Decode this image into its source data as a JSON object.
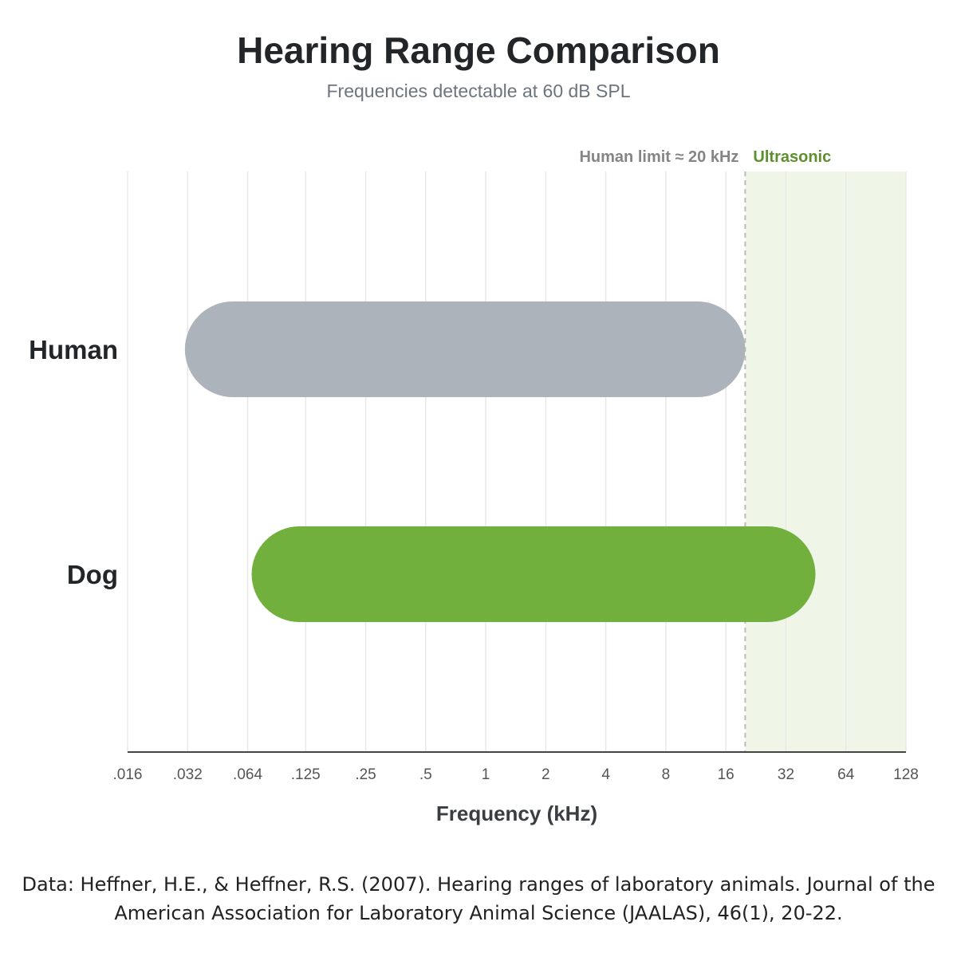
{
  "title": "Hearing Range Comparison",
  "subtitle": "Frequencies detectable at 60 dB SPL",
  "source": "Data: Heffner, H.E., & Heffner, R.S. (2007). Hearing ranges of laboratory animals. Journal of the American Association for Laboratory Animal Science (JAALAS), 46(1), 20-22.",
  "colors": {
    "human": "#adb3bb",
    "dog": "#72b03d",
    "ultrasonic_band": "#eff6e7",
    "ultrasonic_text": "#5e8f2f",
    "limit_line": "#bbbbbb",
    "limit_text": "#858585",
    "grid": "#e8e8e8",
    "axis": "#444444"
  },
  "chart_data": {
    "type": "bar",
    "orientation": "horizontal-range",
    "x_scale": "log2",
    "xlabel": "Frequency (kHz)",
    "xlim": [
      0.016,
      128
    ],
    "x_ticks": [
      0.016,
      0.032,
      0.064,
      0.125,
      0.25,
      0.5,
      1,
      2,
      4,
      8,
      16,
      32,
      64,
      128
    ],
    "x_tick_labels": [
      ".016",
      ".032",
      ".064",
      ".125",
      ".25",
      ".5",
      "1",
      "2",
      "4",
      "8",
      "16",
      "32",
      "64",
      "128"
    ],
    "categories": [
      "Human",
      "Dog"
    ],
    "ranges": [
      {
        "name": "Human",
        "low": 0.031,
        "high": 20,
        "color": "#adb3bb"
      },
      {
        "name": "Dog",
        "low": 0.067,
        "high": 45,
        "color": "#72b03d"
      }
    ],
    "reference_line": {
      "x": 20,
      "label": "Human limit ≈ 20 kHz",
      "style": "dashed"
    },
    "shaded_region": {
      "from": 20,
      "to": 128,
      "label": "Ultrasonic"
    },
    "grid": "vertical"
  }
}
